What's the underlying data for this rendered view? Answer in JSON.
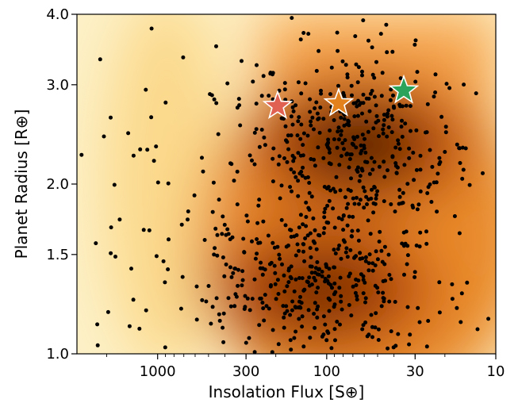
{
  "chart_data": {
    "type": "scatter",
    "xlabel": "Insolation Flux [S⊕]",
    "ylabel": "Planet Radius [R⊕]",
    "x_scale": "log",
    "x_reversed": true,
    "y_scale": "log",
    "xlim": [
      3000,
      10
    ],
    "ylim": [
      1.0,
      4.0
    ],
    "x_ticks": [
      {
        "value": 1000,
        "label": "1000"
      },
      {
        "value": 300,
        "label": "300"
      },
      {
        "value": 100,
        "label": "100"
      },
      {
        "value": 30,
        "label": "30"
      },
      {
        "value": 10,
        "label": "10"
      }
    ],
    "y_ticks": [
      {
        "value": 1.0,
        "label": "1.0"
      },
      {
        "value": 1.5,
        "label": "1.5"
      },
      {
        "value": 2.0,
        "label": "2.0"
      },
      {
        "value": 3.0,
        "label": "3.0"
      },
      {
        "value": 4.0,
        "label": "4.0"
      }
    ],
    "grid": false,
    "background": "orange density map of the planet population (light cream at high flux, dark brown peaks near 2.3 R⊕ and 1.3 R⊕)",
    "density_peaks": [
      {
        "flux": 65,
        "radius": 2.35,
        "strength": 1.0
      },
      {
        "flux": 110,
        "radius": 1.3,
        "strength": 0.85
      }
    ],
    "points_color": "#000000",
    "point_count_estimate": 900,
    "highlighted_planets": [
      {
        "flux": 195,
        "radius": 2.75,
        "color": "#e06052"
      },
      {
        "flux": 85,
        "radius": 2.78,
        "color": "#e3821c"
      },
      {
        "flux": 35,
        "radius": 2.93,
        "color": "#2ba35a"
      }
    ]
  }
}
